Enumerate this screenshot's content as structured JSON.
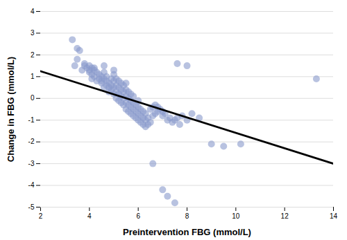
{
  "chart_data": {
    "type": "scatter",
    "xlabel": "Preintervention FBG (mmol/L)",
    "ylabel": "Change in FBG (mmol/L)",
    "xlim": [
      2,
      14
    ],
    "ylim": [
      -5,
      4
    ],
    "xticks": [
      2,
      4,
      6,
      8,
      10,
      12,
      14
    ],
    "yticks": [
      -5,
      -4,
      -3,
      -2,
      -1,
      0,
      1,
      2,
      3,
      4
    ],
    "grid": "y",
    "series": [
      {
        "type": "scatter",
        "color": "#8899cc",
        "x": [
          3.3,
          3.5,
          3.6,
          3.7,
          3.8,
          3.9,
          4.0,
          4.0,
          4.1,
          4.1,
          4.1,
          4.2,
          4.2,
          4.3,
          4.3,
          4.4,
          4.4,
          4.5,
          4.5,
          4.5,
          4.6,
          4.6,
          4.6,
          4.7,
          4.7,
          4.7,
          4.8,
          4.8,
          4.8,
          4.9,
          4.9,
          4.9,
          5.0,
          5.0,
          5.0,
          5.0,
          5.1,
          5.1,
          5.1,
          5.1,
          5.2,
          5.2,
          5.2,
          5.2,
          5.3,
          5.3,
          5.3,
          5.3,
          5.4,
          5.4,
          5.4,
          5.4,
          5.5,
          5.5,
          5.5,
          5.5,
          5.5,
          5.6,
          5.6,
          5.6,
          5.6,
          5.7,
          5.7,
          5.7,
          5.7,
          5.8,
          5.8,
          5.8,
          5.8,
          5.9,
          5.9,
          5.9,
          6.0,
          6.0,
          6.0,
          6.0,
          6.1,
          6.1,
          6.1,
          6.2,
          6.2,
          6.2,
          6.3,
          6.3,
          6.3,
          6.4,
          6.4,
          6.5,
          6.5,
          6.6,
          6.6,
          6.7,
          6.7,
          6.8,
          6.8,
          6.9,
          7.0,
          7.0,
          7.1,
          7.2,
          7.3,
          7.4,
          7.5,
          7.6,
          7.7,
          7.8,
          8.0,
          8.2,
          8.5,
          9.0,
          9.5,
          10.2,
          13.3,
          3.4,
          3.5,
          3.8,
          4.0,
          4.2,
          4.6,
          5.0,
          6.6,
          7.0,
          7.2,
          7.5,
          7.6,
          8.0
        ],
        "values": [
          2.7,
          2.3,
          2.2,
          1.3,
          1.5,
          1.4,
          1.5,
          1.2,
          1.4,
          1.1,
          0.9,
          1.3,
          1.0,
          0.8,
          1.2,
          0.9,
          1.1,
          0.7,
          1.0,
          0.8,
          1.2,
          0.5,
          0.9,
          0.6,
          0.8,
          1.0,
          0.3,
          0.7,
          0.5,
          0.4,
          0.6,
          0.9,
          0.2,
          0.5,
          0.8,
          1.1,
          0.0,
          0.3,
          0.6,
          0.9,
          -0.1,
          0.2,
          0.5,
          0.8,
          -0.2,
          0.1,
          0.4,
          0.7,
          -0.3,
          0.0,
          0.3,
          0.6,
          -0.5,
          -0.2,
          0.1,
          0.4,
          0.7,
          -0.6,
          -0.3,
          0.0,
          0.3,
          -0.7,
          -0.4,
          -0.1,
          0.2,
          -0.8,
          -0.5,
          -0.2,
          0.1,
          -0.9,
          -0.6,
          -0.3,
          -1.0,
          -0.7,
          -0.4,
          -0.1,
          -1.1,
          -0.8,
          -0.5,
          -1.2,
          -0.9,
          -0.6,
          -1.3,
          -1.0,
          -0.7,
          -1.2,
          -0.9,
          -1.1,
          -0.5,
          -0.8,
          -0.4,
          -0.7,
          -0.3,
          -0.6,
          -0.4,
          -0.5,
          -0.6,
          -0.8,
          -0.7,
          -1.0,
          -0.9,
          -1.1,
          -1.0,
          -0.9,
          -1.2,
          -0.8,
          -1.0,
          -0.7,
          -0.9,
          -2.1,
          -2.2,
          -2.1,
          0.9,
          1.5,
          1.8,
          1.6,
          1.3,
          1.4,
          1.5,
          1.3,
          -3.0,
          -4.2,
          -4.5,
          -4.8,
          1.6,
          1.5
        ]
      },
      {
        "type": "line",
        "color": "black",
        "x": [
          2,
          14
        ],
        "values": [
          1.25,
          -3.0
        ]
      }
    ]
  }
}
